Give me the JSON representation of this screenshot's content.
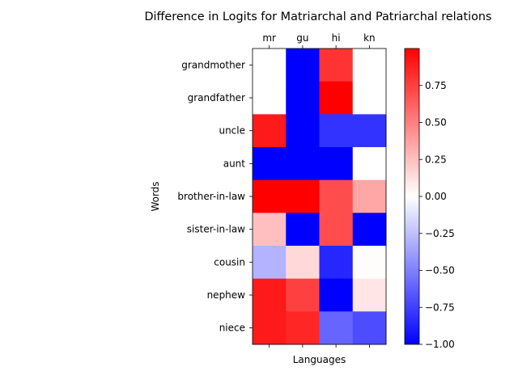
{
  "chart_data": {
    "type": "heatmap",
    "title": "Difference in Logits for Matriarchal and Patriarchal relations",
    "xlabel": "Languages",
    "ylabel": "Words",
    "x_categories": [
      "mr",
      "gu",
      "hi",
      "kn"
    ],
    "y_categories": [
      "grandmother",
      "grandfather",
      "uncle",
      "aunt",
      "brother-in-law",
      "sister-in-law",
      "cousin",
      "nephew",
      "niece"
    ],
    "values": [
      [
        0.0,
        -1.0,
        0.8,
        0.0
      ],
      [
        0.0,
        -1.0,
        1.0,
        0.0
      ],
      [
        0.9,
        -1.0,
        -0.8,
        -0.8
      ],
      [
        -1.0,
        -1.0,
        -1.0,
        0.0
      ],
      [
        1.0,
        1.0,
        0.7,
        0.35
      ],
      [
        0.25,
        -1.0,
        0.7,
        -1.0
      ],
      [
        -0.3,
        0.15,
        -0.85,
        0.01
      ],
      [
        0.9,
        0.75,
        -1.0,
        0.1
      ],
      [
        0.9,
        0.85,
        -0.6,
        -0.7
      ]
    ],
    "colormap": "bwr",
    "vmin": -1.0,
    "vmax": 1.0,
    "colorbar_ticks": [
      "0.75",
      "0.50",
      "0.25",
      "0.00",
      "−0.25",
      "−0.50",
      "−0.75",
      "−1.00"
    ],
    "colorbar_tick_values": [
      0.75,
      0.5,
      0.25,
      0.0,
      -0.25,
      -0.5,
      -0.75,
      -1.0
    ],
    "x_tick_position": "top"
  }
}
